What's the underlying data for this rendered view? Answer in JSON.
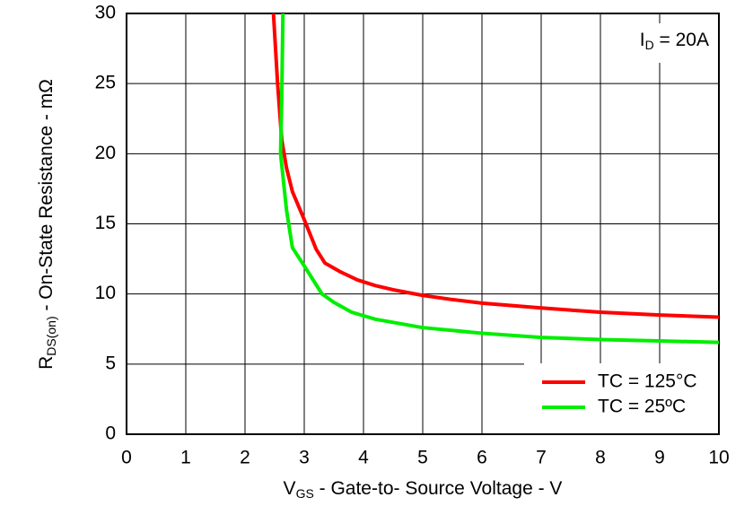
{
  "chart_data": {
    "type": "line",
    "xlabel": {
      "main": "V",
      "sub": "GS",
      "rest": " - Gate-to- Source Voltage - V"
    },
    "ylabel": {
      "main": "R",
      "sub": "DS(on)",
      "rest": " - On-State Resistance - mΩ"
    },
    "annotation": {
      "main": "I",
      "sub": "D",
      "rest": " = 20A"
    },
    "xlim": [
      0,
      10
    ],
    "xticks": [
      0,
      1,
      2,
      3,
      4,
      5,
      6,
      7,
      8,
      9,
      10
    ],
    "ylim": [
      0,
      30
    ],
    "yticks": [
      0,
      5,
      10,
      15,
      20,
      25,
      30
    ],
    "grid": true,
    "legend": "lower right",
    "series": [
      {
        "name": "TC = 125°C",
        "color": "#ff0000",
        "x": [
          2.48,
          2.55,
          2.62,
          2.7,
          2.8,
          3,
          3.2,
          3.35,
          3.6,
          3.9,
          4.2,
          4.5,
          5,
          5.5,
          6,
          7,
          8,
          9,
          10
        ],
        "values": [
          30,
          25,
          21,
          19,
          17.3,
          15.3,
          13.2,
          12.2,
          11.6,
          11,
          10.6,
          10.3,
          9.9,
          9.6,
          9.35,
          9,
          8.7,
          8.5,
          8.35
        ]
      },
      {
        "name": "TC = 25ºC",
        "color": "#00ee00",
        "x": [
          2.64,
          2.62,
          2.6,
          2.7,
          2.8,
          3,
          3.3,
          3.5,
          3.8,
          4.2,
          5,
          6,
          7,
          8,
          9,
          10
        ],
        "values": [
          30,
          24,
          20,
          16,
          13.3,
          12,
          10,
          9.4,
          8.7,
          8.2,
          7.6,
          7.2,
          6.9,
          6.75,
          6.65,
          6.55
        ]
      }
    ]
  }
}
